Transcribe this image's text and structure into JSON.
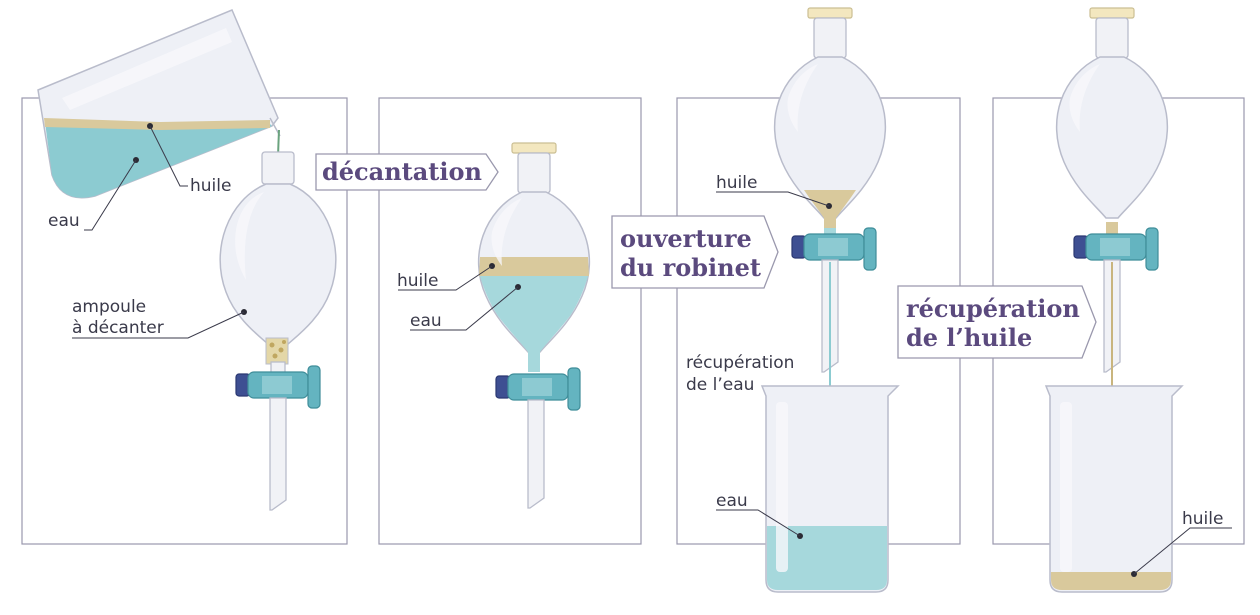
{
  "panels": [
    {
      "labels": {
        "eau": "eau",
        "huile": "huile",
        "ampoule": "ampoule",
        "decanter": "à décanter"
      }
    },
    {
      "labels": {
        "huile": "huile",
        "eau": "eau"
      }
    },
    {
      "labels": {
        "huile": "huile",
        "recup1": "récupération",
        "recup2": "de l’eau",
        "eau": "eau"
      }
    },
    {
      "labels": {
        "huile": "huile"
      }
    }
  ],
  "steps": {
    "decantation": "décantation",
    "ouverture1": "ouverture",
    "ouverture2": "du robinet",
    "recuperation1": "récupération",
    "recuperation2": "de l’huile"
  },
  "colors": {
    "water": "#a6d8dc",
    "oil": "#d9c99c",
    "tap": "#64b4c0",
    "tap_knob": "#3e4f92",
    "step_text": "#5b4a7e",
    "frame": "#9a98ad"
  },
  "icons": [
    "beaker-icon",
    "separatory-funnel-icon",
    "stopcock-icon",
    "stopper-icon"
  ]
}
